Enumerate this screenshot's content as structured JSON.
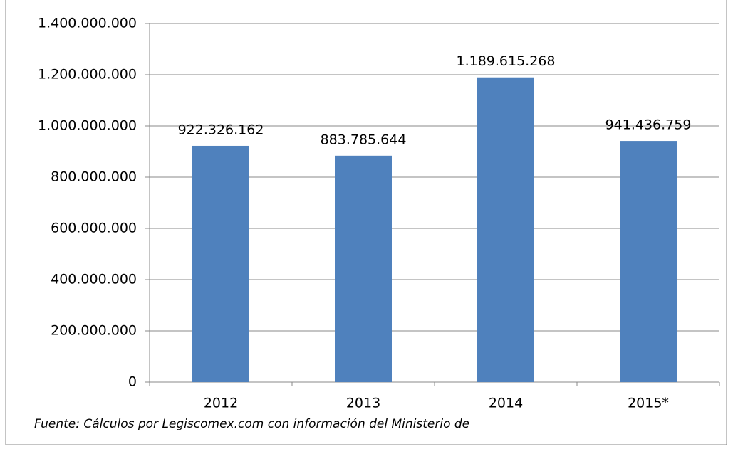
{
  "chart_data": {
    "type": "bar",
    "categories": [
      "2012",
      "2013",
      "2014",
      "2015*"
    ],
    "values": [
      922326162,
      883785644,
      1189615268,
      941436759
    ],
    "value_labels": [
      "922.326.162",
      "883.785.644",
      "1.189.615.268",
      "941.436.759"
    ],
    "color": "#4f81bd",
    "ylim": [
      0,
      1400000000
    ],
    "yticks": [
      0,
      {
        "value": 200000000,
        "label": "200.000.000"
      },
      {
        "value": 400000000,
        "label": "400.000.000"
      },
      {
        "value": 600000000,
        "label": "600.000.000"
      },
      {
        "value": 800000000,
        "label": "800.000.000"
      },
      {
        "value": 1000000000,
        "label": "1.000.000.000"
      },
      {
        "value": 1200000000,
        "label": "1.200.000.000"
      },
      {
        "value": 1400000000,
        "label": "1.400.000.000"
      }
    ],
    "grid": true,
    "note": "Fuente: Cálculos por Legiscomex.com con información del Ministerio de"
  }
}
